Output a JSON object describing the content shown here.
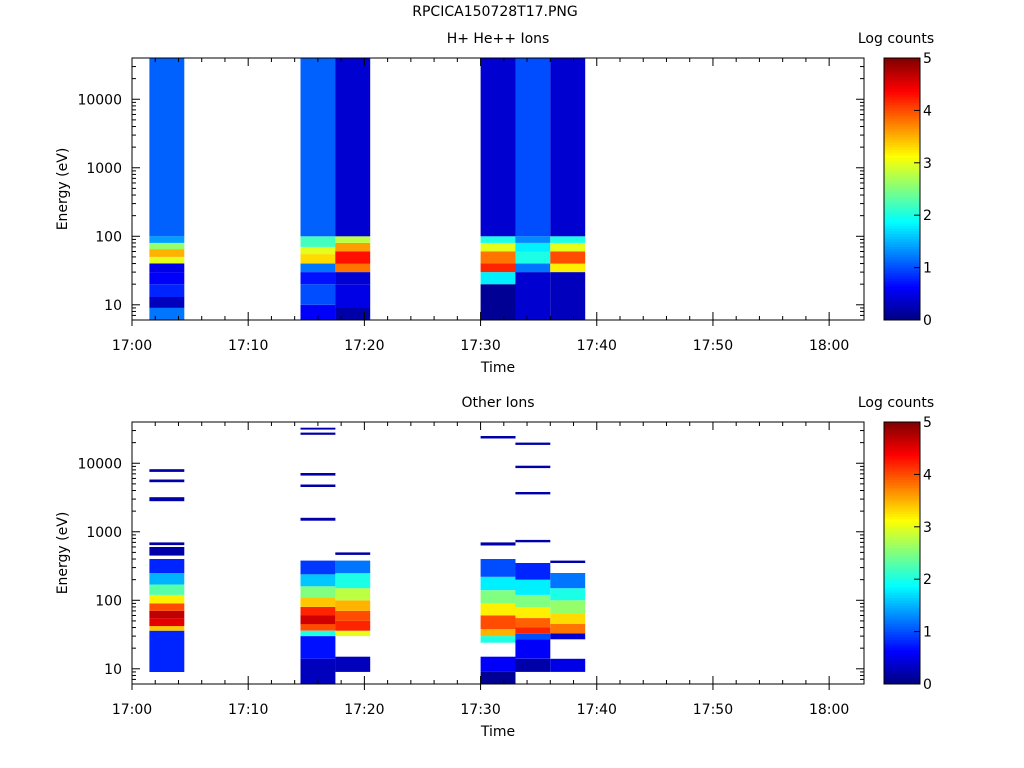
{
  "page_title": "RPCICA150728T17.PNG",
  "chart_data": [
    {
      "type": "heatmap",
      "title": "H+ He++ Ions",
      "xlabel": "Time",
      "ylabel": "Energy (eV)",
      "yscale": "log",
      "ylim": [
        6,
        40000
      ],
      "xlim": [
        "17:00",
        "18:03"
      ],
      "x_ticks": [
        "17:00",
        "17:10",
        "17:20",
        "17:30",
        "17:40",
        "17:50",
        "18:00"
      ],
      "y_ticks": [
        "10",
        "100",
        "1000",
        "10000"
      ],
      "colorbar": {
        "label": "Log counts",
        "range": [
          0,
          5
        ],
        "ticks": [
          "0",
          "1",
          "2",
          "3",
          "4",
          "5"
        ],
        "colormap": "jet"
      },
      "columns": [
        {
          "t_start": "17:01.5",
          "t_end": "17:04.5",
          "bins": [
            {
              "e_low": 6,
              "e_high": 9,
              "log_counts": 1.2
            },
            {
              "e_low": 9,
              "e_high": 13,
              "log_counts": 0.3
            },
            {
              "e_low": 13,
              "e_high": 20,
              "log_counts": 0.8
            },
            {
              "e_low": 20,
              "e_high": 30,
              "log_counts": 0.6
            },
            {
              "e_low": 30,
              "e_high": 40,
              "log_counts": 0.5
            },
            {
              "e_low": 40,
              "e_high": 50,
              "log_counts": 3.0
            },
            {
              "e_low": 50,
              "e_high": 65,
              "log_counts": 3.5
            },
            {
              "e_low": 65,
              "e_high": 80,
              "log_counts": 2.6
            },
            {
              "e_low": 80,
              "e_high": 100,
              "log_counts": 1.4
            },
            {
              "e_low": 100,
              "e_high": 40000,
              "log_counts": 1.1
            }
          ]
        },
        {
          "t_start": "17:14.5",
          "t_end": "17:17.5",
          "bins": [
            {
              "e_low": 6,
              "e_high": 10,
              "log_counts": 0.6
            },
            {
              "e_low": 10,
              "e_high": 20,
              "log_counts": 1.0
            },
            {
              "e_low": 20,
              "e_high": 30,
              "log_counts": 0.7
            },
            {
              "e_low": 30,
              "e_high": 40,
              "log_counts": 1.2
            },
            {
              "e_low": 40,
              "e_high": 55,
              "log_counts": 3.3
            },
            {
              "e_low": 55,
              "e_high": 70,
              "log_counts": 3.0
            },
            {
              "e_low": 70,
              "e_high": 100,
              "log_counts": 2.2
            },
            {
              "e_low": 100,
              "e_high": 40000,
              "log_counts": 1.1
            }
          ]
        },
        {
          "t_start": "17:17.5",
          "t_end": "17:20.5",
          "bins": [
            {
              "e_low": 6,
              "e_high": 9,
              "log_counts": 0.2
            },
            {
              "e_low": 9,
              "e_high": 20,
              "log_counts": 0.5
            },
            {
              "e_low": 20,
              "e_high": 30,
              "log_counts": 0.4
            },
            {
              "e_low": 30,
              "e_high": 40,
              "log_counts": 3.8
            },
            {
              "e_low": 40,
              "e_high": 60,
              "log_counts": 4.3
            },
            {
              "e_low": 60,
              "e_high": 80,
              "log_counts": 3.6
            },
            {
              "e_low": 80,
              "e_high": 100,
              "log_counts": 2.8
            },
            {
              "e_low": 100,
              "e_high": 40000,
              "log_counts": 0.4
            }
          ]
        },
        {
          "t_start": "17:30.0",
          "t_end": "17:33.0",
          "bins": [
            {
              "e_low": 6,
              "e_high": 20,
              "log_counts": 0.1
            },
            {
              "e_low": 20,
              "e_high": 30,
              "log_counts": 1.8
            },
            {
              "e_low": 30,
              "e_high": 40,
              "log_counts": 4.2
            },
            {
              "e_low": 40,
              "e_high": 60,
              "log_counts": 3.8
            },
            {
              "e_low": 60,
              "e_high": 80,
              "log_counts": 3.0
            },
            {
              "e_low": 80,
              "e_high": 100,
              "log_counts": 2.0
            },
            {
              "e_low": 100,
              "e_high": 40000,
              "log_counts": 0.4
            }
          ]
        },
        {
          "t_start": "17:33.0",
          "t_end": "17:36.0",
          "bins": [
            {
              "e_low": 6,
              "e_high": 30,
              "log_counts": 0.4
            },
            {
              "e_low": 30,
              "e_high": 40,
              "log_counts": 1.2
            },
            {
              "e_low": 40,
              "e_high": 60,
              "log_counts": 2.0
            },
            {
              "e_low": 60,
              "e_high": 80,
              "log_counts": 1.8
            },
            {
              "e_low": 80,
              "e_high": 100,
              "log_counts": 1.3
            },
            {
              "e_low": 100,
              "e_high": 40000,
              "log_counts": 1.0
            }
          ]
        },
        {
          "t_start": "17:36.0",
          "t_end": "17:39.0",
          "bins": [
            {
              "e_low": 6,
              "e_high": 30,
              "log_counts": 0.3
            },
            {
              "e_low": 30,
              "e_high": 40,
              "log_counts": 3.2
            },
            {
              "e_low": 40,
              "e_high": 60,
              "log_counts": 4.0
            },
            {
              "e_low": 60,
              "e_high": 80,
              "log_counts": 3.0
            },
            {
              "e_low": 80,
              "e_high": 100,
              "log_counts": 2.0
            },
            {
              "e_low": 100,
              "e_high": 40000,
              "log_counts": 0.4
            }
          ]
        }
      ]
    },
    {
      "type": "heatmap",
      "title": "Other Ions",
      "xlabel": "Time",
      "ylabel": "Energy (eV)",
      "yscale": "log",
      "ylim": [
        6,
        40000
      ],
      "xlim": [
        "17:00",
        "18:03"
      ],
      "x_ticks": [
        "17:00",
        "17:10",
        "17:20",
        "17:30",
        "17:40",
        "17:50",
        "18:00"
      ],
      "y_ticks": [
        "10",
        "100",
        "1000",
        "10000"
      ],
      "colorbar": {
        "label": "Log counts",
        "range": [
          0,
          5
        ],
        "ticks": [
          "0",
          "1",
          "2",
          "3",
          "4",
          "5"
        ],
        "colormap": "jet"
      },
      "columns": [
        {
          "t_start": "17:01.5",
          "t_end": "17:04.5",
          "bins": [
            {
              "e_low": 9,
              "e_high": 36,
              "log_counts": 0.8
            },
            {
              "e_low": 36,
              "e_high": 42,
              "log_counts": 3.4
            },
            {
              "e_low": 42,
              "e_high": 55,
              "log_counts": 4.5
            },
            {
              "e_low": 55,
              "e_high": 70,
              "log_counts": 4.7
            },
            {
              "e_low": 70,
              "e_high": 90,
              "log_counts": 4.0
            },
            {
              "e_low": 90,
              "e_high": 120,
              "log_counts": 3.2
            },
            {
              "e_low": 120,
              "e_high": 170,
              "log_counts": 2.3
            },
            {
              "e_low": 170,
              "e_high": 250,
              "log_counts": 1.5
            },
            {
              "e_low": 250,
              "e_high": 400,
              "log_counts": 0.8
            },
            {
              "e_low": 450,
              "e_high": 600,
              "log_counts": 0.2
            },
            {
              "e_low": 640,
              "e_high": 700,
              "log_counts": 0.2
            },
            {
              "e_low": 2800,
              "e_high": 3200,
              "log_counts": 0.2
            },
            {
              "e_low": 5300,
              "e_high": 5800,
              "log_counts": 0.2
            },
            {
              "e_low": 7500,
              "e_high": 8200,
              "log_counts": 0.2
            }
          ]
        },
        {
          "t_start": "17:14.5",
          "t_end": "17:17.5",
          "bins": [
            {
              "e_low": 6,
              "e_high": 14,
              "log_counts": 0.3
            },
            {
              "e_low": 14,
              "e_high": 30,
              "log_counts": 0.7
            },
            {
              "e_low": 30,
              "e_high": 36,
              "log_counts": 2.0
            },
            {
              "e_low": 36,
              "e_high": 45,
              "log_counts": 4.0
            },
            {
              "e_low": 45,
              "e_high": 60,
              "log_counts": 4.6
            },
            {
              "e_low": 60,
              "e_high": 80,
              "log_counts": 4.2
            },
            {
              "e_low": 80,
              "e_high": 110,
              "log_counts": 3.4
            },
            {
              "e_low": 110,
              "e_high": 160,
              "log_counts": 2.5
            },
            {
              "e_low": 160,
              "e_high": 240,
              "log_counts": 1.6
            },
            {
              "e_low": 240,
              "e_high": 380,
              "log_counts": 0.9
            },
            {
              "e_low": 1450,
              "e_high": 1600,
              "log_counts": 0.2
            },
            {
              "e_low": 4500,
              "e_high": 4900,
              "log_counts": 0.2
            },
            {
              "e_low": 6600,
              "e_high": 7200,
              "log_counts": 0.2
            },
            {
              "e_low": 26000,
              "e_high": 28000,
              "log_counts": 0.2
            },
            {
              "e_low": 31000,
              "e_high": 33000,
              "log_counts": 0.2
            }
          ]
        },
        {
          "t_start": "17:17.5",
          "t_end": "17:20.5",
          "bins": [
            {
              "e_low": 9,
              "e_high": 15,
              "log_counts": 0.3
            },
            {
              "e_low": 30,
              "e_high": 36,
              "log_counts": 3.0
            },
            {
              "e_low": 36,
              "e_high": 50,
              "log_counts": 4.2
            },
            {
              "e_low": 50,
              "e_high": 70,
              "log_counts": 4.0
            },
            {
              "e_low": 70,
              "e_high": 100,
              "log_counts": 3.5
            },
            {
              "e_low": 100,
              "e_high": 150,
              "log_counts": 2.8
            },
            {
              "e_low": 150,
              "e_high": 250,
              "log_counts": 2.0
            },
            {
              "e_low": 250,
              "e_high": 380,
              "log_counts": 1.2
            },
            {
              "e_low": 460,
              "e_high": 500,
              "log_counts": 0.2
            }
          ]
        },
        {
          "t_start": "17:30.0",
          "t_end": "17:33.0",
          "bins": [
            {
              "e_low": 6,
              "e_high": 9,
              "log_counts": 0.1
            },
            {
              "e_low": 9,
              "e_high": 15,
              "log_counts": 0.6
            },
            {
              "e_low": 24,
              "e_high": 30,
              "log_counts": 2.0
            },
            {
              "e_low": 30,
              "e_high": 38,
              "log_counts": 3.5
            },
            {
              "e_low": 38,
              "e_high": 60,
              "log_counts": 4.0
            },
            {
              "e_low": 60,
              "e_high": 90,
              "log_counts": 3.2
            },
            {
              "e_low": 90,
              "e_high": 140,
              "log_counts": 2.5
            },
            {
              "e_low": 140,
              "e_high": 220,
              "log_counts": 1.8
            },
            {
              "e_low": 220,
              "e_high": 400,
              "log_counts": 1.0
            },
            {
              "e_low": 630,
              "e_high": 700,
              "log_counts": 0.2
            },
            {
              "e_low": 23000,
              "e_high": 25000,
              "log_counts": 0.2
            }
          ]
        },
        {
          "t_start": "17:33.0",
          "t_end": "17:36.0",
          "bins": [
            {
              "e_low": 9,
              "e_high": 14,
              "log_counts": 0.2
            },
            {
              "e_low": 14,
              "e_high": 27,
              "log_counts": 0.6
            },
            {
              "e_low": 27,
              "e_high": 33,
              "log_counts": 1.0
            },
            {
              "e_low": 33,
              "e_high": 40,
              "log_counts": 4.2
            },
            {
              "e_low": 40,
              "e_high": 55,
              "log_counts": 3.9
            },
            {
              "e_low": 55,
              "e_high": 80,
              "log_counts": 3.2
            },
            {
              "e_low": 80,
              "e_high": 120,
              "log_counts": 2.5
            },
            {
              "e_low": 120,
              "e_high": 200,
              "log_counts": 1.8
            },
            {
              "e_low": 200,
              "e_high": 350,
              "log_counts": 0.8
            },
            {
              "e_low": 700,
              "e_high": 760,
              "log_counts": 0.2
            },
            {
              "e_low": 3500,
              "e_high": 3800,
              "log_counts": 0.2
            },
            {
              "e_low": 8500,
              "e_high": 9200,
              "log_counts": 0.2
            },
            {
              "e_low": 18500,
              "e_high": 20000,
              "log_counts": 0.2
            }
          ]
        },
        {
          "t_start": "17:36.0",
          "t_end": "17:39.0",
          "bins": [
            {
              "e_low": 9,
              "e_high": 14,
              "log_counts": 0.5
            },
            {
              "e_low": 27,
              "e_high": 33,
              "log_counts": 0.4
            },
            {
              "e_low": 33,
              "e_high": 45,
              "log_counts": 3.8
            },
            {
              "e_low": 45,
              "e_high": 65,
              "log_counts": 3.3
            },
            {
              "e_low": 65,
              "e_high": 100,
              "log_counts": 2.6
            },
            {
              "e_low": 100,
              "e_high": 150,
              "log_counts": 2.0
            },
            {
              "e_low": 150,
              "e_high": 250,
              "log_counts": 1.2
            },
            {
              "e_low": 350,
              "e_high": 380,
              "log_counts": 0.2
            }
          ]
        }
      ]
    }
  ]
}
